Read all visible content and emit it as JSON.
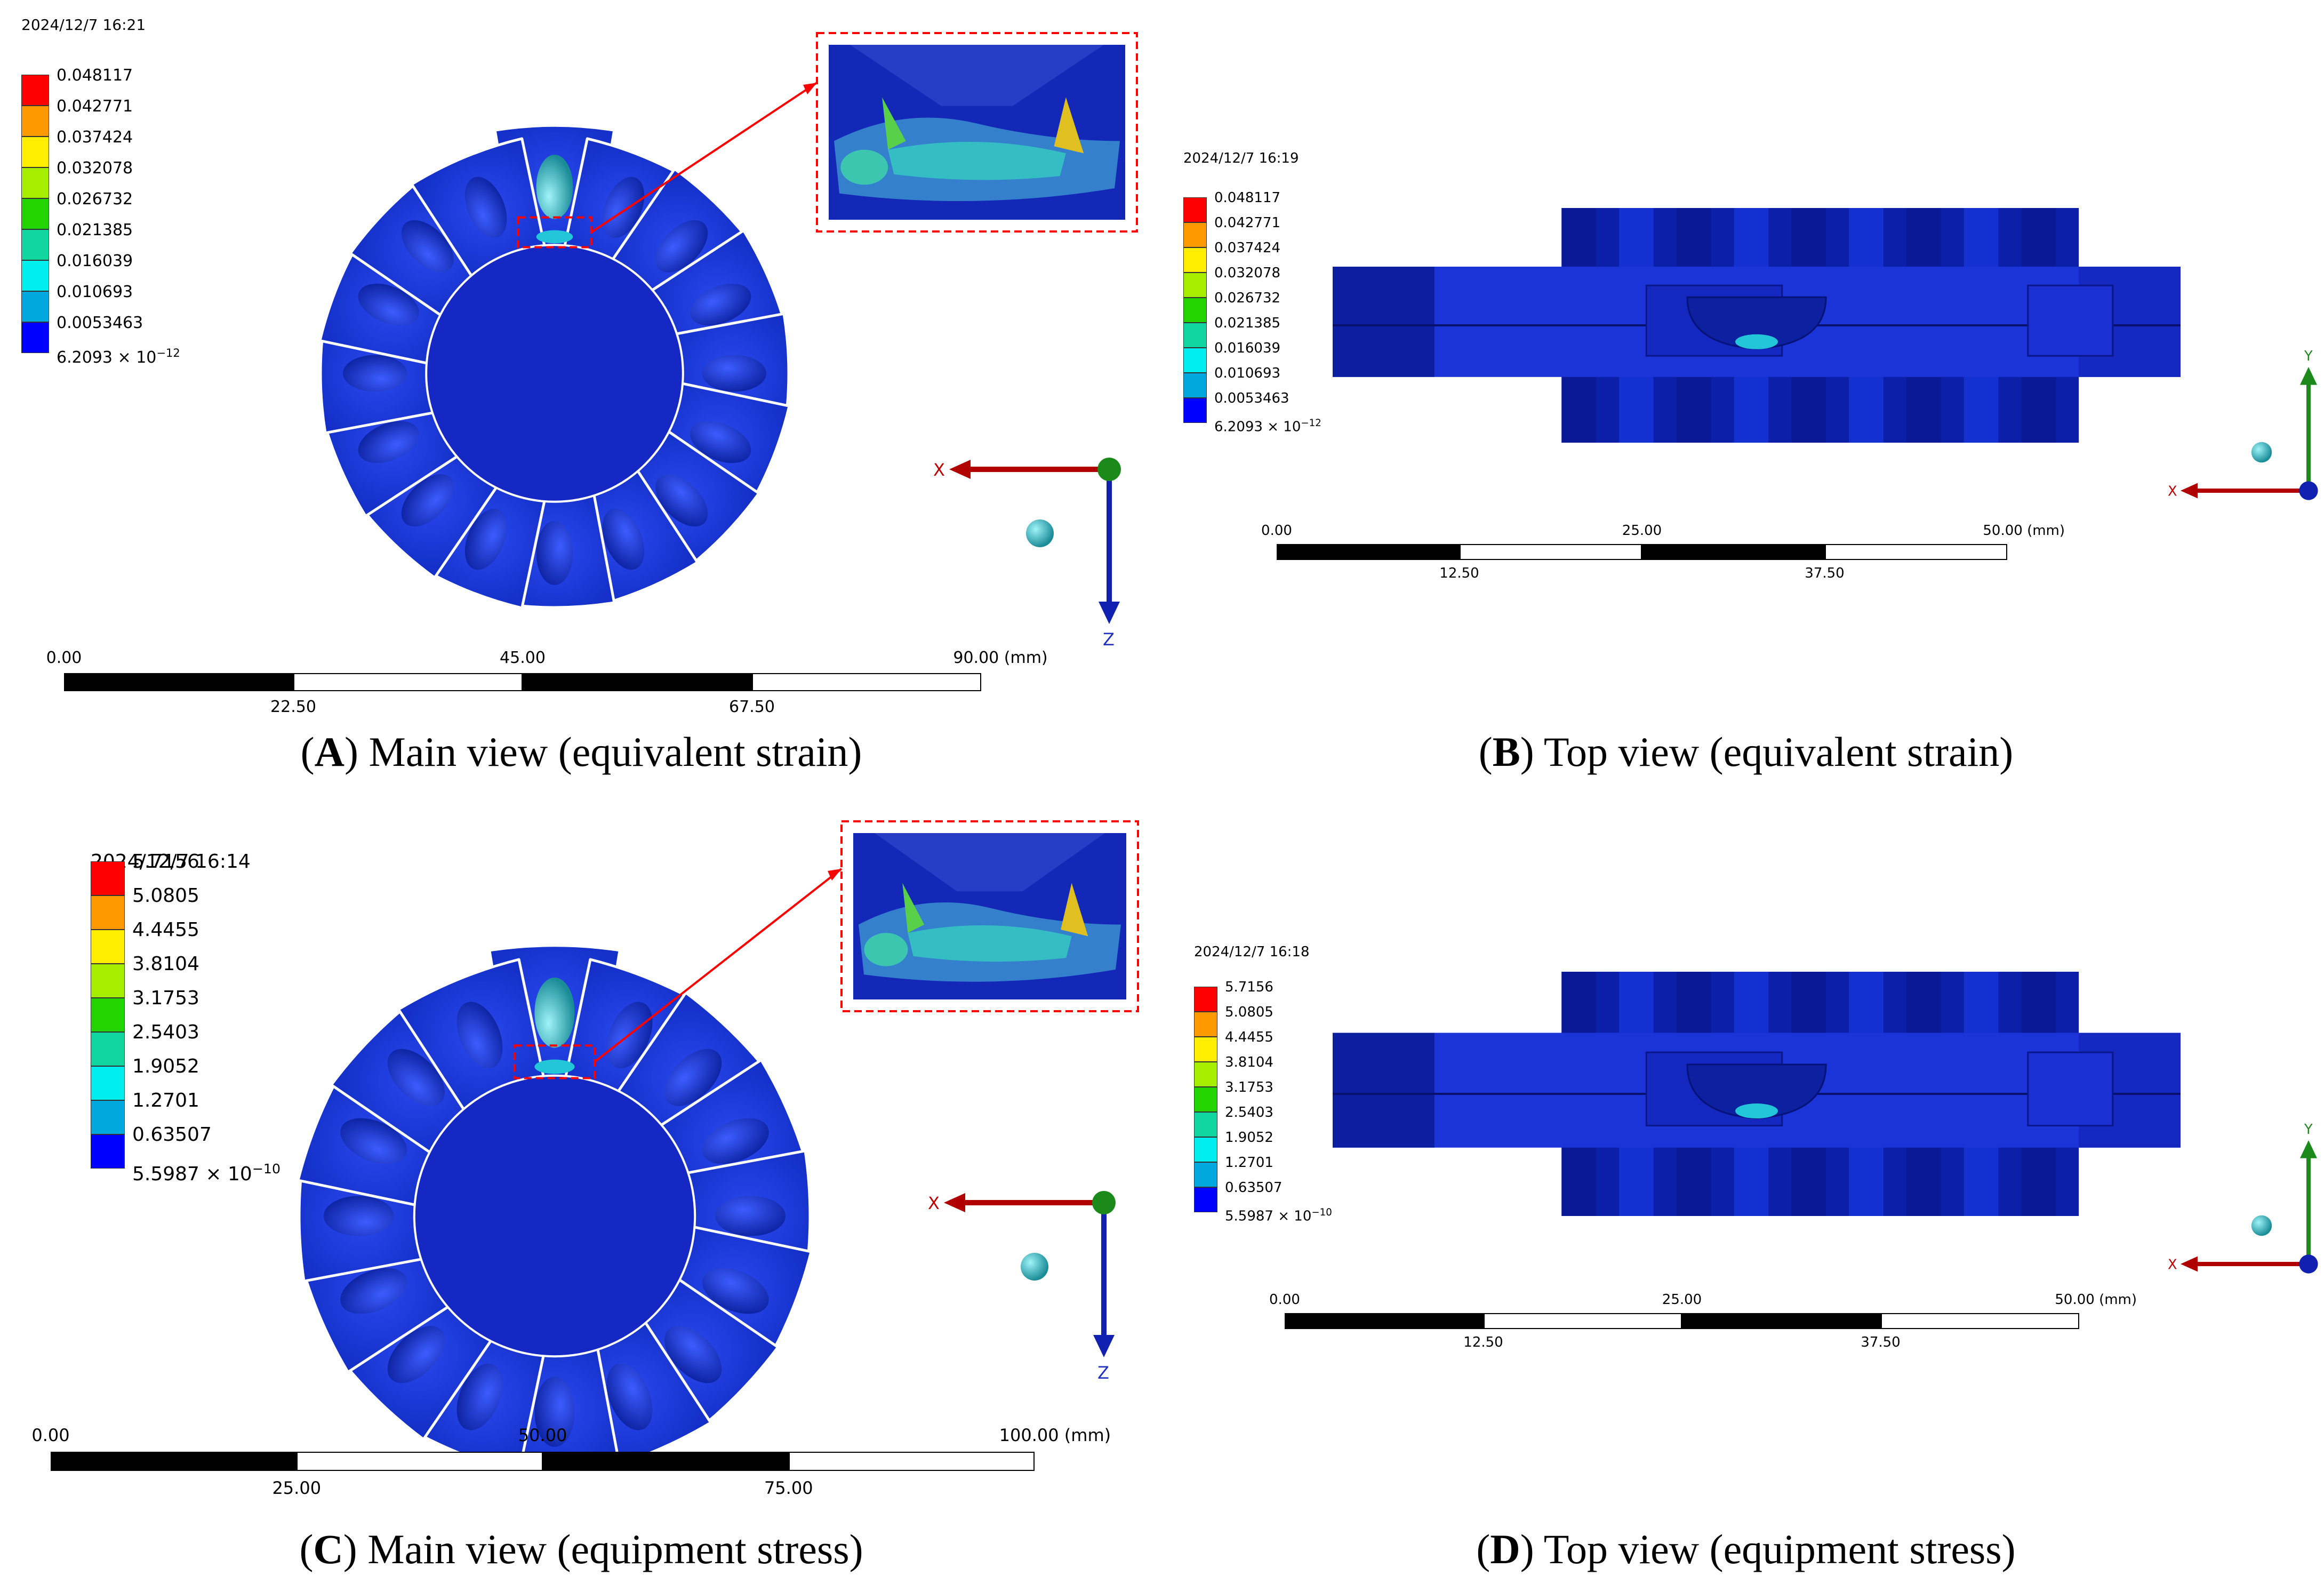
{
  "figure": {
    "panels": [
      {
        "id": "A",
        "caption_letter": "A",
        "caption_text": ") Main view (equivalent strain)",
        "timestamp": "2024/12/7 16:21",
        "view": "main",
        "legend": [
          "0.048117",
          "0.042771",
          "0.037424",
          "0.032078",
          "0.026732",
          "0.021385",
          "0.016039",
          "0.010693",
          "0.0053463"
        ],
        "legend_min_mantissa": "6.2093",
        "legend_min_exp": "−12",
        "scale_top": [
          "0.00",
          "45.00",
          "90.00 (mm)"
        ],
        "scale_bottom": [
          "22.50",
          "67.50"
        ],
        "axis_h": "X",
        "axis_v": "Z"
      },
      {
        "id": "B",
        "caption_letter": "B",
        "caption_text": ") Top view (equivalent strain)",
        "timestamp": "2024/12/7 16:19",
        "view": "top",
        "legend": [
          "0.048117",
          "0.042771",
          "0.037424",
          "0.032078",
          "0.026732",
          "0.021385",
          "0.016039",
          "0.010693",
          "0.0053463"
        ],
        "legend_min_mantissa": "6.2093",
        "legend_min_exp": "−12",
        "scale_top": [
          "0.00",
          "25.00",
          "50.00 (mm)"
        ],
        "scale_bottom": [
          "12.50",
          "37.50"
        ],
        "axis_h": "X",
        "axis_v": "Y"
      },
      {
        "id": "C",
        "caption_letter": "C",
        "caption_text": ") Main view (equipment stress)",
        "timestamp": "2024/12/7 16:14",
        "view": "main",
        "legend": [
          "5.7156",
          "5.0805",
          "4.4455",
          "3.8104",
          "3.1753",
          "2.5403",
          "1.9052",
          "1.2701",
          "0.63507"
        ],
        "legend_min_mantissa": "5.5987",
        "legend_min_exp": "−10",
        "scale_top": [
          "0.00",
          "50.00",
          "100.00 (mm)"
        ],
        "scale_bottom": [
          "25.00",
          "75.00"
        ],
        "axis_h": "X",
        "axis_v": "Z"
      },
      {
        "id": "D",
        "caption_letter": "D",
        "caption_text": ") Top view (equipment stress)",
        "timestamp": "2024/12/7 16:18",
        "view": "top",
        "legend": [
          "5.7156",
          "5.0805",
          "4.4455",
          "3.8104",
          "3.1753",
          "2.5403",
          "1.9052",
          "1.2701",
          "0.63507"
        ],
        "legend_min_mantissa": "5.5987",
        "legend_min_exp": "−10",
        "scale_top": [
          "0.00",
          "25.00",
          "50.00 (mm)"
        ],
        "scale_bottom": [
          "12.50",
          "37.50"
        ],
        "axis_h": "X",
        "axis_v": "Y"
      }
    ],
    "colors": {
      "legend_scale": [
        "#ff0000",
        "#ff9900",
        "#ffee00",
        "#a6ee00",
        "#22d400",
        "#11d6a0",
        "#00eeee",
        "#00a8e0",
        "#0000ff"
      ],
      "part_blue": "#1a33d6",
      "part_dark": "#0a1aa8",
      "highlight_box": "#ff0000",
      "axis_x": "#b00000",
      "axis_y": "#1b8a1b",
      "axis_z": "#1020b0",
      "axis_sphere": "#2bb7c4"
    }
  }
}
